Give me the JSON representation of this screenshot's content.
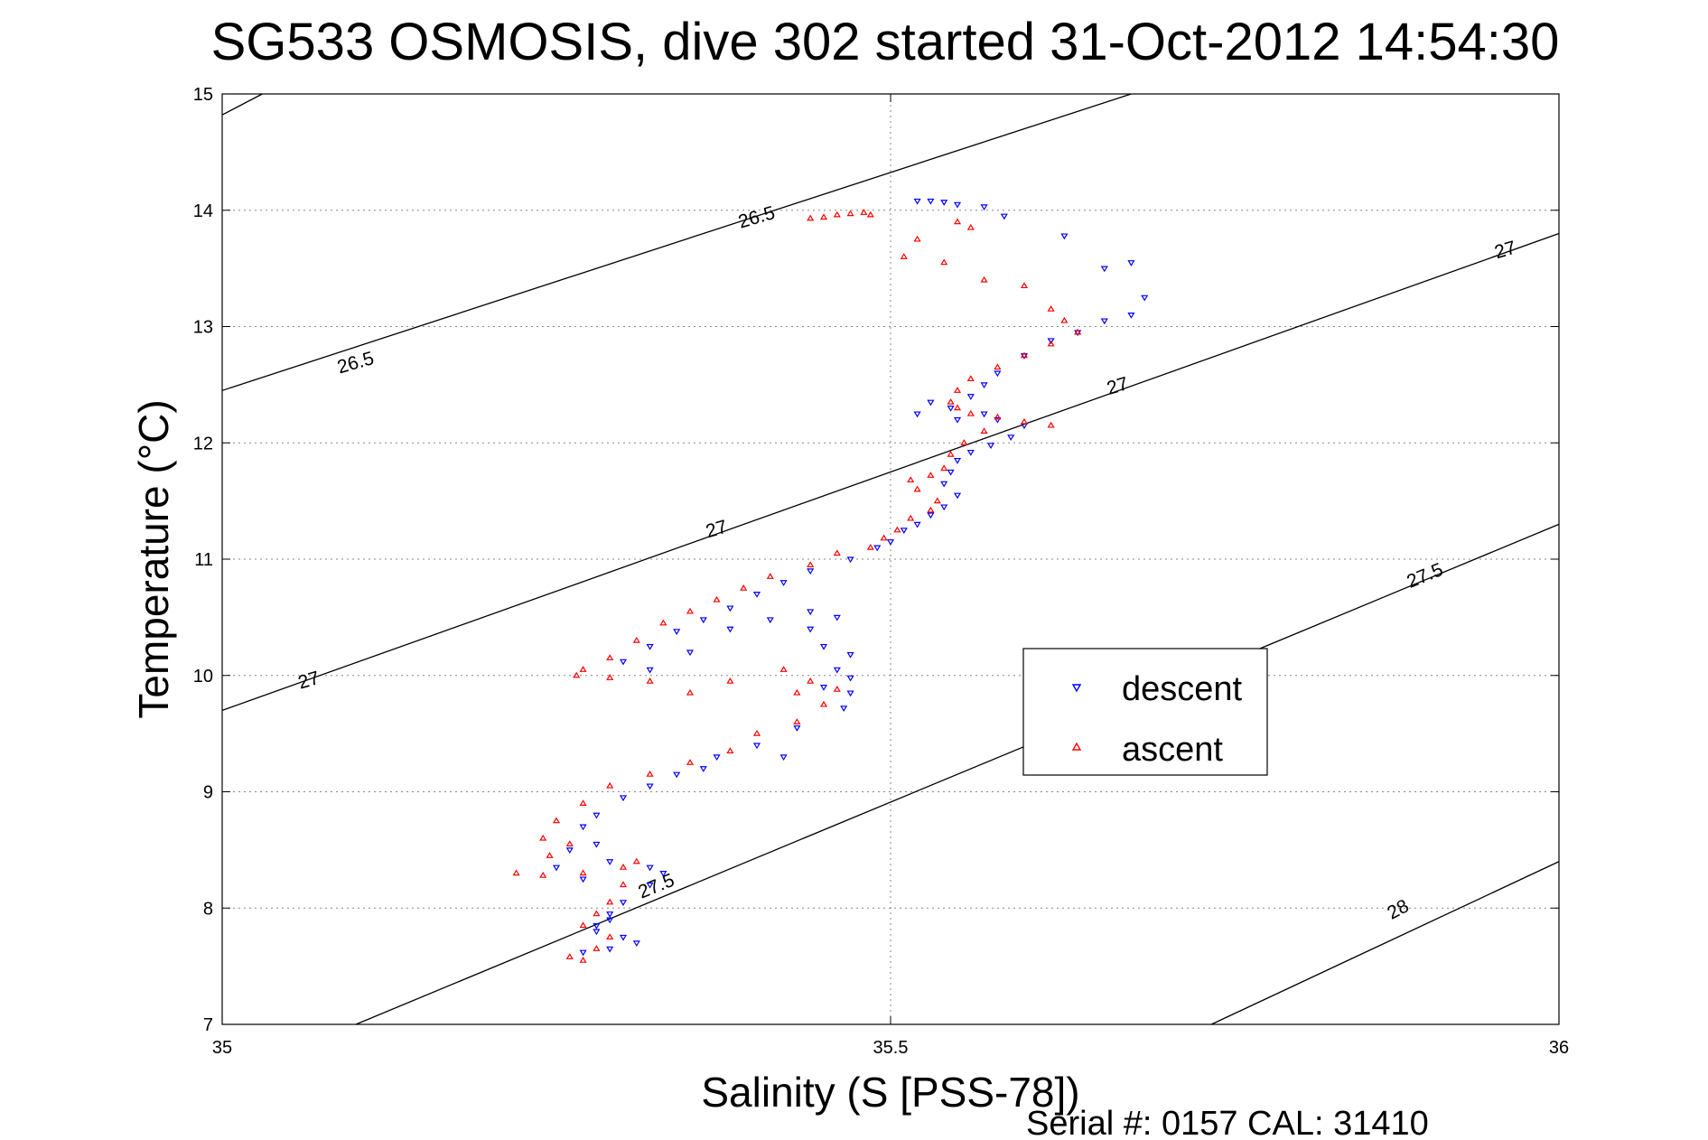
{
  "chart_data": {
    "type": "scatter",
    "title": "SG533 OSMOSIS, dive 302 started 31-Oct-2012 14:54:30",
    "xlabel": "Salinity (S [PSS-78])",
    "ylabel": "Temperature (°C)",
    "xlim": [
      35,
      36
    ],
    "ylim": [
      7,
      15
    ],
    "x_ticks": [
      35,
      35.5,
      36
    ],
    "x_tick_labels": [
      "35",
      "35.5",
      "36"
    ],
    "y_ticks": [
      7,
      8,
      9,
      10,
      11,
      12,
      13,
      14,
      15
    ],
    "y_tick_labels": [
      "7",
      "8",
      "9",
      "10",
      "11",
      "12",
      "13",
      "14",
      "15"
    ],
    "grid": true,
    "legend_position": "center-right",
    "series": [
      {
        "name": "descent",
        "marker": "triangle-down",
        "color": "#0000ff",
        "points": [
          [
            35.52,
            14.08
          ],
          [
            35.53,
            14.08
          ],
          [
            35.54,
            14.07
          ],
          [
            35.55,
            14.05
          ],
          [
            35.57,
            14.03
          ],
          [
            35.585,
            13.95
          ],
          [
            35.63,
            13.78
          ],
          [
            35.66,
            13.5
          ],
          [
            35.68,
            13.55
          ],
          [
            35.69,
            13.25
          ],
          [
            35.68,
            13.1
          ],
          [
            35.66,
            13.05
          ],
          [
            35.64,
            12.95
          ],
          [
            35.62,
            12.88
          ],
          [
            35.6,
            12.75
          ],
          [
            35.58,
            12.6
          ],
          [
            35.57,
            12.5
          ],
          [
            35.56,
            12.4
          ],
          [
            35.545,
            12.3
          ],
          [
            35.53,
            12.35
          ],
          [
            35.52,
            12.25
          ],
          [
            35.55,
            12.2
          ],
          [
            35.57,
            12.25
          ],
          [
            35.58,
            12.2
          ],
          [
            35.6,
            12.15
          ],
          [
            35.59,
            12.05
          ],
          [
            35.575,
            11.98
          ],
          [
            35.56,
            11.92
          ],
          [
            35.55,
            11.85
          ],
          [
            35.545,
            11.75
          ],
          [
            35.54,
            11.65
          ],
          [
            35.55,
            11.55
          ],
          [
            35.54,
            11.45
          ],
          [
            35.53,
            11.38
          ],
          [
            35.52,
            11.3
          ],
          [
            35.51,
            11.25
          ],
          [
            35.5,
            11.15
          ],
          [
            35.49,
            11.1
          ],
          [
            35.47,
            11.0
          ],
          [
            35.44,
            10.9
          ],
          [
            35.42,
            10.8
          ],
          [
            35.4,
            10.7
          ],
          [
            35.38,
            10.58
          ],
          [
            35.36,
            10.48
          ],
          [
            35.34,
            10.38
          ],
          [
            35.32,
            10.25
          ],
          [
            35.3,
            10.12
          ],
          [
            35.32,
            10.05
          ],
          [
            35.35,
            10.2
          ],
          [
            35.38,
            10.4
          ],
          [
            35.41,
            10.48
          ],
          [
            35.44,
            10.55
          ],
          [
            35.46,
            10.5
          ],
          [
            35.44,
            10.4
          ],
          [
            35.45,
            10.25
          ],
          [
            35.47,
            10.18
          ],
          [
            35.46,
            10.05
          ],
          [
            35.47,
            9.98
          ],
          [
            35.45,
            9.9
          ],
          [
            35.47,
            9.85
          ],
          [
            35.465,
            9.72
          ],
          [
            35.43,
            9.55
          ],
          [
            35.42,
            9.3
          ],
          [
            35.4,
            9.4
          ],
          [
            35.37,
            9.3
          ],
          [
            35.36,
            9.2
          ],
          [
            35.34,
            9.15
          ],
          [
            35.32,
            9.05
          ],
          [
            35.3,
            8.95
          ],
          [
            35.28,
            8.8
          ],
          [
            35.27,
            8.7
          ],
          [
            35.28,
            8.55
          ],
          [
            35.26,
            8.5
          ],
          [
            35.25,
            8.35
          ],
          [
            35.27,
            8.25
          ],
          [
            35.29,
            8.4
          ],
          [
            35.32,
            8.35
          ],
          [
            35.33,
            8.3
          ],
          [
            35.32,
            8.2
          ],
          [
            35.3,
            8.05
          ],
          [
            35.29,
            7.9
          ],
          [
            35.28,
            7.8
          ],
          [
            35.3,
            7.75
          ],
          [
            35.31,
            7.7
          ],
          [
            35.29,
            7.65
          ],
          [
            35.27,
            7.62
          ],
          [
            35.28,
            7.85
          ],
          [
            35.29,
            7.95
          ]
        ]
      },
      {
        "name": "ascent",
        "marker": "triangle-up",
        "color": "#ff0000",
        "points": [
          [
            35.44,
            13.93
          ],
          [
            35.45,
            13.94
          ],
          [
            35.46,
            13.96
          ],
          [
            35.47,
            13.97
          ],
          [
            35.48,
            13.98
          ],
          [
            35.485,
            13.96
          ],
          [
            35.55,
            13.9
          ],
          [
            35.56,
            13.85
          ],
          [
            35.52,
            13.75
          ],
          [
            35.51,
            13.6
          ],
          [
            35.54,
            13.55
          ],
          [
            35.57,
            13.4
          ],
          [
            35.6,
            13.35
          ],
          [
            35.62,
            13.15
          ],
          [
            35.63,
            13.05
          ],
          [
            35.64,
            12.95
          ],
          [
            35.62,
            12.85
          ],
          [
            35.6,
            12.75
          ],
          [
            35.58,
            12.65
          ],
          [
            35.56,
            12.55
          ],
          [
            35.55,
            12.45
          ],
          [
            35.545,
            12.35
          ],
          [
            35.55,
            12.3
          ],
          [
            35.56,
            12.25
          ],
          [
            35.58,
            12.22
          ],
          [
            35.6,
            12.18
          ],
          [
            35.62,
            12.15
          ],
          [
            35.57,
            12.1
          ],
          [
            35.555,
            12.0
          ],
          [
            35.545,
            11.9
          ],
          [
            35.54,
            11.78
          ],
          [
            35.53,
            11.72
          ],
          [
            35.515,
            11.68
          ],
          [
            35.52,
            11.6
          ],
          [
            35.535,
            11.5
          ],
          [
            35.53,
            11.42
          ],
          [
            35.515,
            11.35
          ],
          [
            35.505,
            11.25
          ],
          [
            35.495,
            11.18
          ],
          [
            35.485,
            11.1
          ],
          [
            35.46,
            11.05
          ],
          [
            35.44,
            10.95
          ],
          [
            35.41,
            10.85
          ],
          [
            35.39,
            10.75
          ],
          [
            35.37,
            10.65
          ],
          [
            35.35,
            10.55
          ],
          [
            35.33,
            10.45
          ],
          [
            35.31,
            10.3
          ],
          [
            35.29,
            10.15
          ],
          [
            35.27,
            10.05
          ],
          [
            35.265,
            10.0
          ],
          [
            35.29,
            9.98
          ],
          [
            35.32,
            9.95
          ],
          [
            35.35,
            9.85
          ],
          [
            35.38,
            9.95
          ],
          [
            35.42,
            10.05
          ],
          [
            35.44,
            9.95
          ],
          [
            35.43,
            9.85
          ],
          [
            35.46,
            9.88
          ],
          [
            35.45,
            9.75
          ],
          [
            35.43,
            9.6
          ],
          [
            35.4,
            9.5
          ],
          [
            35.38,
            9.35
          ],
          [
            35.35,
            9.25
          ],
          [
            35.32,
            9.15
          ],
          [
            35.29,
            9.05
          ],
          [
            35.27,
            8.9
          ],
          [
            35.25,
            8.75
          ],
          [
            35.24,
            8.6
          ],
          [
            35.26,
            8.55
          ],
          [
            35.245,
            8.45
          ],
          [
            35.22,
            8.3
          ],
          [
            35.24,
            8.28
          ],
          [
            35.27,
            8.3
          ],
          [
            35.3,
            8.35
          ],
          [
            35.31,
            8.4
          ],
          [
            35.3,
            8.2
          ],
          [
            35.29,
            8.05
          ],
          [
            35.28,
            7.95
          ],
          [
            35.27,
            7.85
          ],
          [
            35.29,
            7.75
          ],
          [
            35.28,
            7.65
          ],
          [
            35.26,
            7.58
          ],
          [
            35.27,
            7.55
          ]
        ]
      }
    ],
    "contours": [
      {
        "label": "26.5",
        "points": [
          [
            35,
            14.82
          ],
          [
            35.03,
            15
          ]
        ]
      },
      {
        "label": "26.5",
        "points": [
          [
            35,
            12.45
          ],
          [
            35.68,
            15
          ]
        ]
      },
      {
        "label": "27",
        "points": [
          [
            35,
            9.7
          ],
          [
            36,
            13.8
          ]
        ]
      },
      {
        "label": "27.5",
        "points": [
          [
            35.1,
            7
          ],
          [
            36,
            11.3
          ]
        ]
      },
      {
        "label": "28",
        "points": [
          [
            35.74,
            7
          ],
          [
            36,
            8.4
          ]
        ]
      }
    ],
    "contour_labels": [
      {
        "text": "26.5",
        "x": 35.4,
        "y": 13.93,
        "angle": -16
      },
      {
        "text": "26.5",
        "x": 35.1,
        "y": 12.68,
        "angle": -16
      },
      {
        "text": "27",
        "x": 35.96,
        "y": 13.65,
        "angle": -16
      },
      {
        "text": "27",
        "x": 35.67,
        "y": 12.48,
        "angle": -16
      },
      {
        "text": "27",
        "x": 35.37,
        "y": 11.25,
        "angle": -16
      },
      {
        "text": "27",
        "x": 35.065,
        "y": 9.95,
        "angle": -16
      },
      {
        "text": "27.5",
        "x": 35.9,
        "y": 10.85,
        "angle": -22
      },
      {
        "text": "27.5",
        "x": 35.325,
        "y": 8.18,
        "angle": -22
      },
      {
        "text": "28",
        "x": 35.88,
        "y": 7.98,
        "angle": -28
      }
    ]
  },
  "legend": {
    "items": [
      {
        "label": "descent",
        "marker": "triangle-down",
        "color": "#0000ff"
      },
      {
        "label": "ascent",
        "marker": "triangle-up",
        "color": "#ff0000"
      }
    ]
  },
  "footer": {
    "serial_text": "Serial #: 0157  CAL: 31410"
  }
}
